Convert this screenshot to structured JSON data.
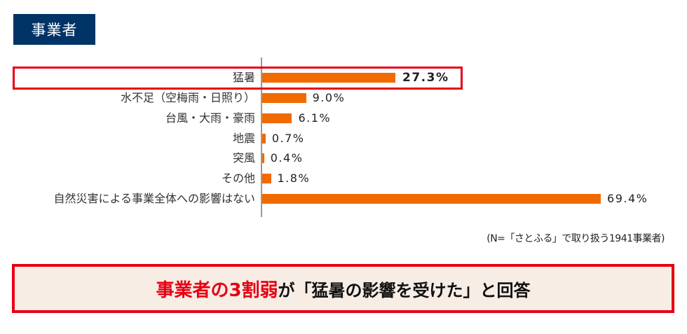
{
  "header": {
    "tag_label": "事業者"
  },
  "chart_data": {
    "type": "bar",
    "orientation": "horizontal",
    "title": "事業者",
    "categories": [
      "猛暑",
      "水不足（空梅雨・日照り）",
      "台風・大雨・豪雨",
      "地震",
      "突風",
      "その他",
      "自然災害による事業全体への影響はない"
    ],
    "values": [
      27.3,
      9.0,
      6.1,
      0.7,
      0.4,
      1.8,
      69.4
    ],
    "value_labels": [
      "27.3%",
      "9.0%",
      "6.1%",
      "0.7%",
      "0.4%",
      "1.8%",
      "69.4%"
    ],
    "unit": "%",
    "xlim": [
      0,
      100
    ],
    "bar_color": "#f06a00",
    "highlighted_category": "猛暑",
    "highlight_color": "#e60012",
    "grid": false,
    "legend": null,
    "note": "(N=「さとふる」で取り扱う1941事業者)"
  },
  "footnote": "(N=「さとふる」で取り扱う1941事業者)",
  "conclusion": {
    "emphasis": "事業者の3割弱",
    "rest": "が「猛暑の影響を受けた」と回答"
  },
  "colors": {
    "tag_bg": "#003366",
    "accent_red": "#e60012",
    "bar_orange": "#f06a00",
    "conclusion_bg": "#f7ede5"
  }
}
